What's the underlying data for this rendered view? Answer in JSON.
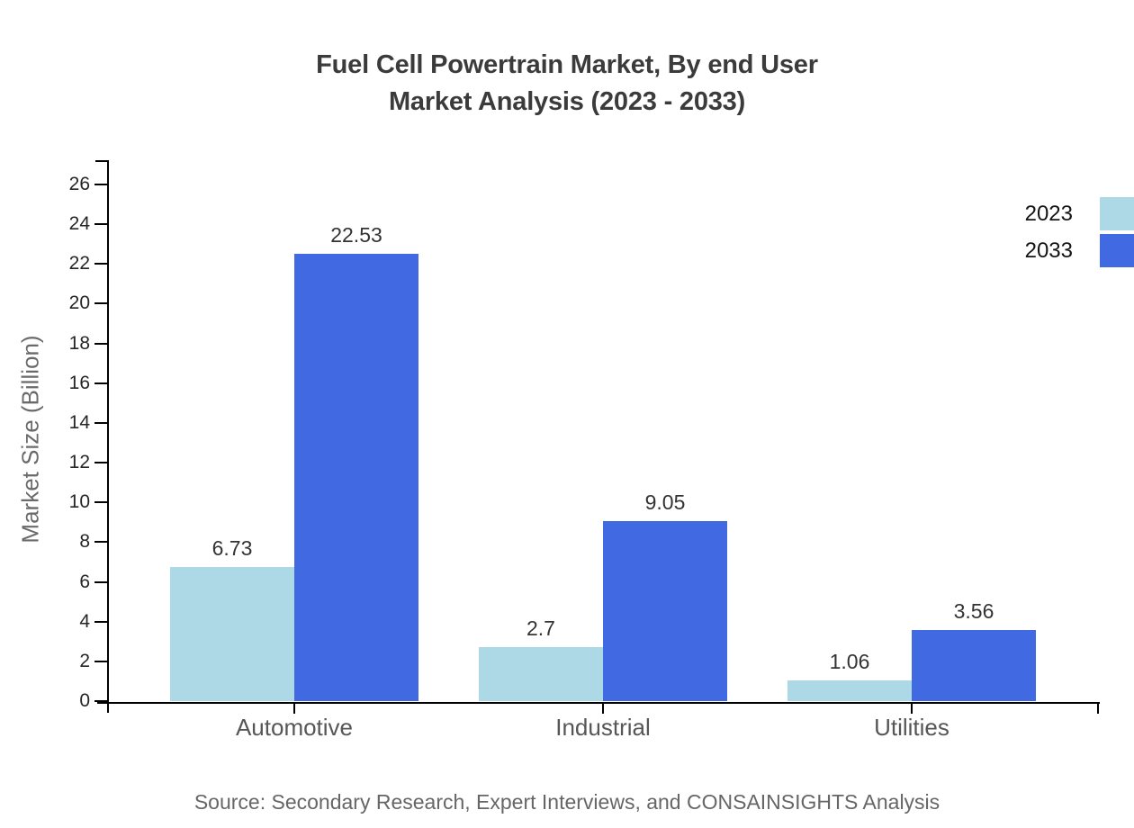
{
  "title": {
    "line1": "Fuel Cell Powertrain Market, By end User",
    "line2": "Market Analysis (2023 - 2033)"
  },
  "y_axis": {
    "label": "Market Size (Billion)"
  },
  "legend": [
    {
      "label": "2023",
      "color": "#ADD8E6"
    },
    {
      "label": "2033",
      "color": "#4169E1"
    }
  ],
  "source": "Source: Secondary Research, Expert Interviews, and CONSAINSIGHTS Analysis",
  "chart_data": {
    "type": "bar",
    "title": "Fuel Cell Powertrain Market, By end User Market Analysis (2023 - 2033)",
    "categories": [
      "Automotive",
      "Industrial",
      "Utilities"
    ],
    "series": [
      {
        "name": "2023",
        "color": "#ADD8E6",
        "values": [
          6.73,
          2.7,
          1.06
        ]
      },
      {
        "name": "2033",
        "color": "#4169E1",
        "values": [
          22.53,
          9.05,
          3.56
        ]
      }
    ],
    "xlabel": "",
    "ylabel": "Market Size (Billion)",
    "ylim": [
      0,
      26
    ],
    "yticks": [
      0,
      2,
      4,
      6,
      8,
      10,
      12,
      14,
      16,
      18,
      20,
      22,
      24,
      26
    ],
    "grid": false,
    "value_labels": true,
    "legend_position": "top-right"
  }
}
